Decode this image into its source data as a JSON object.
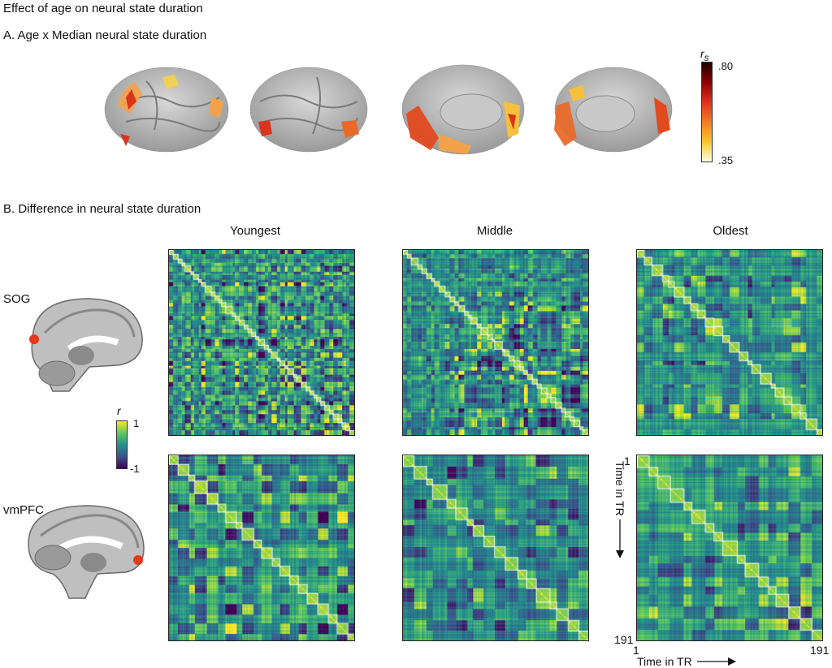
{
  "figure": {
    "title": "Effect of age on neural state duration",
    "panel_a": {
      "title": "A. Age x Median neural state duration",
      "colorbar": {
        "label": "r",
        "label_subscript": "s",
        "max": ".80",
        "min": ".35",
        "colors": [
          "#1a0000",
          "#8b0000",
          "#e0301e",
          "#f47b20",
          "#f9c52c",
          "#ffffe0"
        ]
      }
    },
    "panel_b": {
      "title": "B. Difference in neural state duration",
      "columns": [
        "Youngest",
        "Middle",
        "Oldest"
      ],
      "rows": [
        "SOG",
        "vmPFC"
      ],
      "colorbar": {
        "label": "r",
        "max": "1",
        "min": "-1",
        "colors": [
          "#440154",
          "#3b528b",
          "#21918c",
          "#5ec962",
          "#fde725"
        ]
      },
      "axes": {
        "y_label": "Time in TR",
        "x_label": "Time in TR",
        "tick_start": "1",
        "tick_end": "191"
      },
      "matrices": [
        {
          "row": "SOG",
          "column": "Youngest",
          "n_states": 45
        },
        {
          "row": "SOG",
          "column": "Middle",
          "n_states": 40
        },
        {
          "row": "SOG",
          "column": "Oldest",
          "n_states": 24
        },
        {
          "row": "vmPFC",
          "column": "Youngest",
          "n_states": 20
        },
        {
          "row": "vmPFC",
          "column": "Middle",
          "n_states": 18
        },
        {
          "row": "vmPFC",
          "column": "Oldest",
          "n_states": 17
        }
      ]
    }
  }
}
